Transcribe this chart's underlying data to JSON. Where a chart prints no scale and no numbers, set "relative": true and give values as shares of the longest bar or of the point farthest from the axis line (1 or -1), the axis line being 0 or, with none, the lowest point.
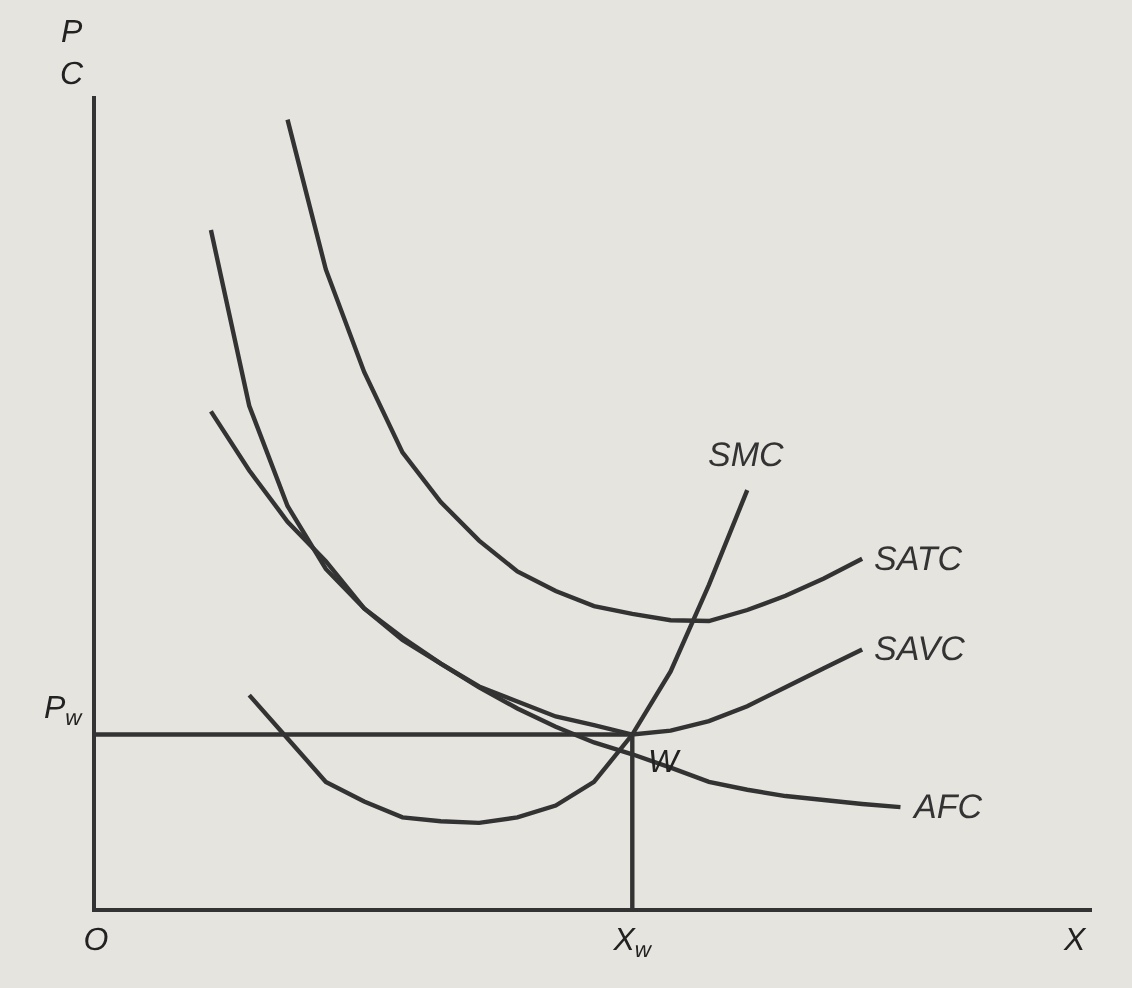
{
  "chart_data": {
    "type": "line",
    "relative": true,
    "ylabel": "P\nC",
    "xlabel": "X",
    "legend": false,
    "grid": false,
    "marker": "none",
    "line_style": "solid",
    "categories": [
      "O",
      null,
      null,
      null,
      null,
      null,
      null,
      null,
      null,
      null,
      null,
      null,
      null,
      null,
      "X$_{w}$",
      null,
      null,
      null,
      null,
      null,
      null,
      null,
      null,
      null,
      null,
      null,
      null
    ],
    "series": [
      {
        "name": "SATC",
        "color": "#333333",
        "values": [
          null,
          null,
          null,
          null,
          null,
          1,
          0.81,
          0.68,
          0.578,
          0.515,
          0.466,
          0.427,
          0.402,
          0.383,
          0.373,
          0.365,
          0.364,
          0.378,
          0.396,
          0.418,
          0.443,
          null,
          null,
          null,
          null,
          null,
          null
        ]
      },
      {
        "name": "SAVC",
        "color": "#333333",
        "values": [
          null,
          null,
          null,
          0.63,
          0.555,
          0.49,
          0.44,
          0.38,
          0.343,
          0.31,
          0.281,
          0.262,
          0.243,
          0.232,
          0.22,
          0.225,
          0.237,
          0.256,
          0.28,
          0.304,
          0.328,
          null,
          null,
          null,
          null,
          null,
          null
        ]
      },
      {
        "name": "AFC",
        "color": "#333333",
        "values": [
          null,
          null,
          null,
          0.86,
          0.637,
          0.51,
          0.43,
          0.38,
          0.34,
          0.31,
          0.28,
          0.253,
          0.23,
          0.21,
          0.195,
          0.178,
          0.16,
          0.15,
          0.142,
          0.137,
          0.132,
          0.128,
          null,
          null,
          null,
          null,
          null
        ]
      },
      {
        "name": "SMC",
        "color": "#333333",
        "values": [
          null,
          null,
          null,
          null,
          0.27,
          0.215,
          0.16,
          0.135,
          0.115,
          0.11,
          0.108,
          0.115,
          0.13,
          0.16,
          0.22,
          0.3,
          0.41,
          0.53,
          null,
          null,
          null,
          null,
          null,
          null,
          null,
          null,
          null
        ]
      },
      {
        "color": "#333333",
        "values": [
          0.22,
          0.22,
          0.22,
          0.22,
          0.22,
          0.22,
          0.22,
          0.22,
          0.22,
          0.22,
          0.22,
          0.22,
          0.22,
          0.22,
          0.22,
          null,
          null,
          null,
          null,
          null,
          null,
          null,
          null,
          null,
          null,
          null,
          null
        ]
      }
    ],
    "ref_lines": [
      {
        "axis": "x",
        "value": "X$_{w}$",
        "color": "#333333"
      }
    ],
    "annotations": [
      {
        "text": "W",
        "y": 0.22
      },
      "P$_{w}$"
    ]
  }
}
